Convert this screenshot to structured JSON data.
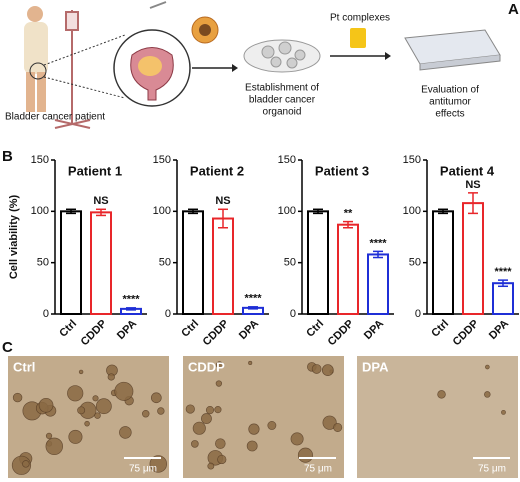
{
  "panel_labels": [
    "A",
    "B",
    "C"
  ],
  "schematic": {
    "patient_label": "Bladder cancer patient",
    "organoid_label": [
      "Establishment of",
      "bladder cancer",
      "organoid"
    ],
    "drug_label": "Pt complexes",
    "evaluation_label": [
      "Evaluation of",
      "antitumor",
      "effects"
    ]
  },
  "chart_data": [
    {
      "type": "bar",
      "title": "Patient 1",
      "ylabel": "Cell viability (%)",
      "categories": [
        "Ctrl",
        "CDDP",
        "DPA"
      ],
      "values": [
        100,
        99,
        5
      ],
      "errors": [
        2,
        3,
        1
      ],
      "annotations": [
        null,
        "NS",
        "****"
      ],
      "colors": [
        "#000000",
        "#e8262a",
        "#1f2fd6"
      ],
      "ylim": [
        0,
        150
      ],
      "yticks": [
        0,
        50,
        100,
        150
      ]
    },
    {
      "type": "bar",
      "title": "Patient 2",
      "categories": [
        "Ctrl",
        "CDDP",
        "DPA"
      ],
      "values": [
        100,
        93,
        6
      ],
      "errors": [
        2,
        9,
        1
      ],
      "annotations": [
        null,
        "NS",
        "****"
      ],
      "colors": [
        "#000000",
        "#e8262a",
        "#1f2fd6"
      ],
      "ylim": [
        0,
        150
      ],
      "yticks": [
        0,
        50,
        100,
        150
      ]
    },
    {
      "type": "bar",
      "title": "Patient 3",
      "categories": [
        "Ctrl",
        "CDDP",
        "DPA"
      ],
      "values": [
        100,
        87,
        58
      ],
      "errors": [
        2,
        3,
        3
      ],
      "annotations": [
        null,
        "**",
        "****"
      ],
      "colors": [
        "#000000",
        "#e8262a",
        "#1f2fd6"
      ],
      "ylim": [
        0,
        150
      ],
      "yticks": [
        0,
        50,
        100,
        150
      ]
    },
    {
      "type": "bar",
      "title": "Patient 4",
      "categories": [
        "Ctrl",
        "CDDP",
        "DPA"
      ],
      "values": [
        100,
        108,
        30
      ],
      "errors": [
        2,
        10,
        3
      ],
      "annotations": [
        null,
        "NS",
        "****"
      ],
      "colors": [
        "#000000",
        "#e8262a",
        "#1f2fd6"
      ],
      "ylim": [
        0,
        150
      ],
      "yticks": [
        0,
        50,
        100,
        150
      ]
    }
  ],
  "images": [
    {
      "label": "Ctrl",
      "scale_bar": "75 μm"
    },
    {
      "label": "CDDP",
      "scale_bar": "75 μm"
    },
    {
      "label": "DPA",
      "scale_bar": "75 μm"
    }
  ]
}
